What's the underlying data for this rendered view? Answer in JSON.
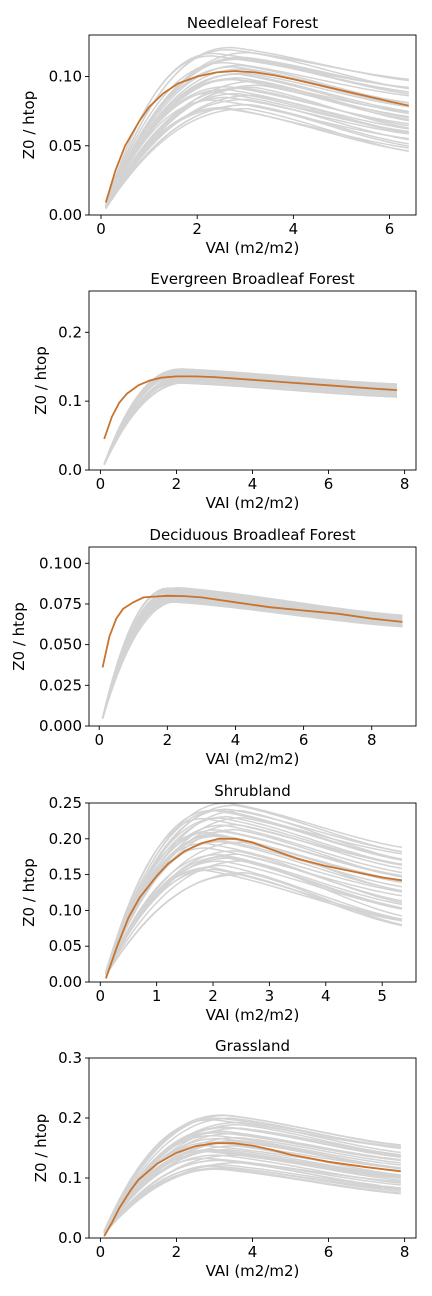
{
  "chart_data": [
    {
      "type": "line",
      "title": "Needleleaf Forest",
      "xlabel": "VAI (m2/m2)",
      "ylabel": "Z0 / htop",
      "xlim": [
        -0.25,
        6.55
      ],
      "ylim": [
        0.0,
        0.13
      ],
      "xticks": [
        0,
        2,
        4,
        6
      ],
      "yticks": [
        0.0,
        0.05,
        0.1
      ],
      "ytick_labels": [
        "0.00",
        "0.05",
        "0.10"
      ],
      "grid": false,
      "legend": "none",
      "colors": {
        "mean": "#c8732e",
        "ensemble": "#d3d3d3"
      },
      "ensemble": {
        "count": 36,
        "peak_min": 0.076,
        "peak_max": 0.121,
        "x_peak_min": 2.3,
        "x_peak_max": 3.3,
        "end_min": 0.046,
        "end_max": 0.098
      },
      "series": [
        {
          "x": [
            0.1,
            0.3,
            0.5,
            0.8,
            1.0,
            1.3,
            1.6,
            2.0,
            2.4,
            2.8,
            3.2,
            3.6,
            4.0,
            4.5,
            5.0,
            5.5,
            6.0,
            6.4
          ],
          "values": [
            0.009,
            0.032,
            0.05,
            0.068,
            0.078,
            0.088,
            0.095,
            0.1,
            0.103,
            0.104,
            0.103,
            0.101,
            0.098,
            0.094,
            0.09,
            0.086,
            0.082,
            0.079
          ]
        }
      ]
    },
    {
      "type": "line",
      "title": "Evergreen Broadleaf Forest",
      "xlabel": "VAI (m2/m2)",
      "ylabel": "Z0 / htop",
      "xlim": [
        -0.3,
        8.3
      ],
      "ylim": [
        0.0,
        0.26
      ],
      "xticks": [
        0,
        2,
        4,
        6,
        8
      ],
      "yticks": [
        0.0,
        0.1,
        0.2
      ],
      "ytick_labels": [
        "0.0",
        "0.1",
        "0.2"
      ],
      "grid": false,
      "legend": "none",
      "colors": {
        "mean": "#c8732e",
        "ensemble": "#d3d3d3"
      },
      "ensemble": {
        "count": 30,
        "peak_min": 0.126,
        "peak_max": 0.147,
        "x_peak_min": 2.0,
        "x_peak_max": 2.4,
        "end_min": 0.106,
        "end_max": 0.125
      },
      "series": [
        {
          "x": [
            0.1,
            0.3,
            0.5,
            0.7,
            1.0,
            1.3,
            1.6,
            2.0,
            2.5,
            3.0,
            4.0,
            5.0,
            6.0,
            7.0,
            7.8
          ],
          "values": [
            0.045,
            0.077,
            0.098,
            0.111,
            0.123,
            0.13,
            0.134,
            0.136,
            0.136,
            0.135,
            0.131,
            0.127,
            0.123,
            0.119,
            0.116
          ]
        }
      ]
    },
    {
      "type": "line",
      "title": "Deciduous Broadleaf Forest",
      "xlabel": "VAI (m2/m2)",
      "ylabel": "Z0 / htop",
      "xlim": [
        -0.3,
        9.3
      ],
      "ylim": [
        0.0,
        0.11
      ],
      "xticks": [
        0,
        2,
        4,
        6,
        8
      ],
      "yticks": [
        0.0,
        0.025,
        0.05,
        0.075,
        0.1
      ],
      "ytick_labels": [
        "0.000",
        "0.025",
        "0.050",
        "0.075",
        "0.100"
      ],
      "grid": false,
      "legend": "none",
      "colors": {
        "mean": "#c8732e",
        "ensemble": "#d3d3d3"
      },
      "ensemble": {
        "count": 30,
        "peak_min": 0.076,
        "peak_max": 0.085,
        "x_peak_min": 2.0,
        "x_peak_max": 2.4,
        "end_min": 0.061,
        "end_max": 0.068
      },
      "series": [
        {
          "x": [
            0.1,
            0.3,
            0.5,
            0.7,
            1.0,
            1.3,
            1.6,
            2.0,
            2.5,
            3.0,
            4.0,
            5.0,
            6.0,
            7.0,
            8.0,
            8.9
          ],
          "values": [
            0.036,
            0.055,
            0.066,
            0.072,
            0.076,
            0.079,
            0.0795,
            0.08,
            0.0798,
            0.079,
            0.076,
            0.073,
            0.071,
            0.069,
            0.066,
            0.064
          ]
        }
      ]
    },
    {
      "type": "line",
      "title": "Shrubland",
      "xlabel": "VAI (m2/m2)",
      "ylabel": "Z0 / htop",
      "xlim": [
        -0.2,
        5.6
      ],
      "ylim": [
        0.0,
        0.25
      ],
      "xticks": [
        0,
        1,
        2,
        3,
        4,
        5
      ],
      "yticks": [
        0.0,
        0.05,
        0.1,
        0.15,
        0.2,
        0.25
      ],
      "ytick_labels": [
        "0.00",
        "0.05",
        "0.10",
        "0.15",
        "0.20",
        "0.25"
      ],
      "grid": false,
      "legend": "none",
      "colors": {
        "mean": "#c8732e",
        "ensemble": "#d3d3d3"
      },
      "ensemble": {
        "count": 36,
        "peak_min": 0.15,
        "peak_max": 0.25,
        "x_peak_min": 1.8,
        "x_peak_max": 2.6,
        "end_min": 0.076,
        "end_max": 0.188
      },
      "series": [
        {
          "x": [
            0.1,
            0.3,
            0.5,
            0.7,
            1.0,
            1.2,
            1.5,
            1.8,
            2.1,
            2.4,
            2.7,
            3.0,
            3.5,
            4.0,
            4.5,
            5.0,
            5.35
          ],
          "values": [
            0.005,
            0.05,
            0.09,
            0.118,
            0.148,
            0.165,
            0.183,
            0.194,
            0.2,
            0.2,
            0.195,
            0.186,
            0.172,
            0.162,
            0.154,
            0.146,
            0.142
          ]
        }
      ]
    },
    {
      "type": "line",
      "title": "Grassland",
      "xlabel": "VAI (m2/m2)",
      "ylabel": "Z0 / htop",
      "xlim": [
        -0.3,
        8.3
      ],
      "ylim": [
        0.0,
        0.3
      ],
      "xticks": [
        0,
        2,
        4,
        6,
        8
      ],
      "yticks": [
        0.0,
        0.1,
        0.2,
        0.3
      ],
      "ytick_labels": [
        "0.0",
        "0.1",
        "0.2",
        "0.3"
      ],
      "grid": false,
      "legend": "none",
      "colors": {
        "mean": "#c8732e",
        "ensemble": "#d3d3d3"
      },
      "ensemble": {
        "count": 36,
        "peak_min": 0.112,
        "peak_max": 0.205,
        "x_peak_min": 2.7,
        "x_peak_max": 3.7,
        "end_min": 0.072,
        "end_max": 0.155
      },
      "series": [
        {
          "x": [
            0.1,
            0.3,
            0.5,
            0.8,
            1.0,
            1.5,
            2.0,
            2.5,
            3.0,
            3.5,
            4.0,
            4.5,
            5.0,
            6.0,
            7.0,
            7.9
          ],
          "values": [
            0.003,
            0.025,
            0.05,
            0.08,
            0.097,
            0.124,
            0.142,
            0.153,
            0.158,
            0.158,
            0.154,
            0.147,
            0.139,
            0.127,
            0.118,
            0.111
          ]
        }
      ]
    }
  ]
}
